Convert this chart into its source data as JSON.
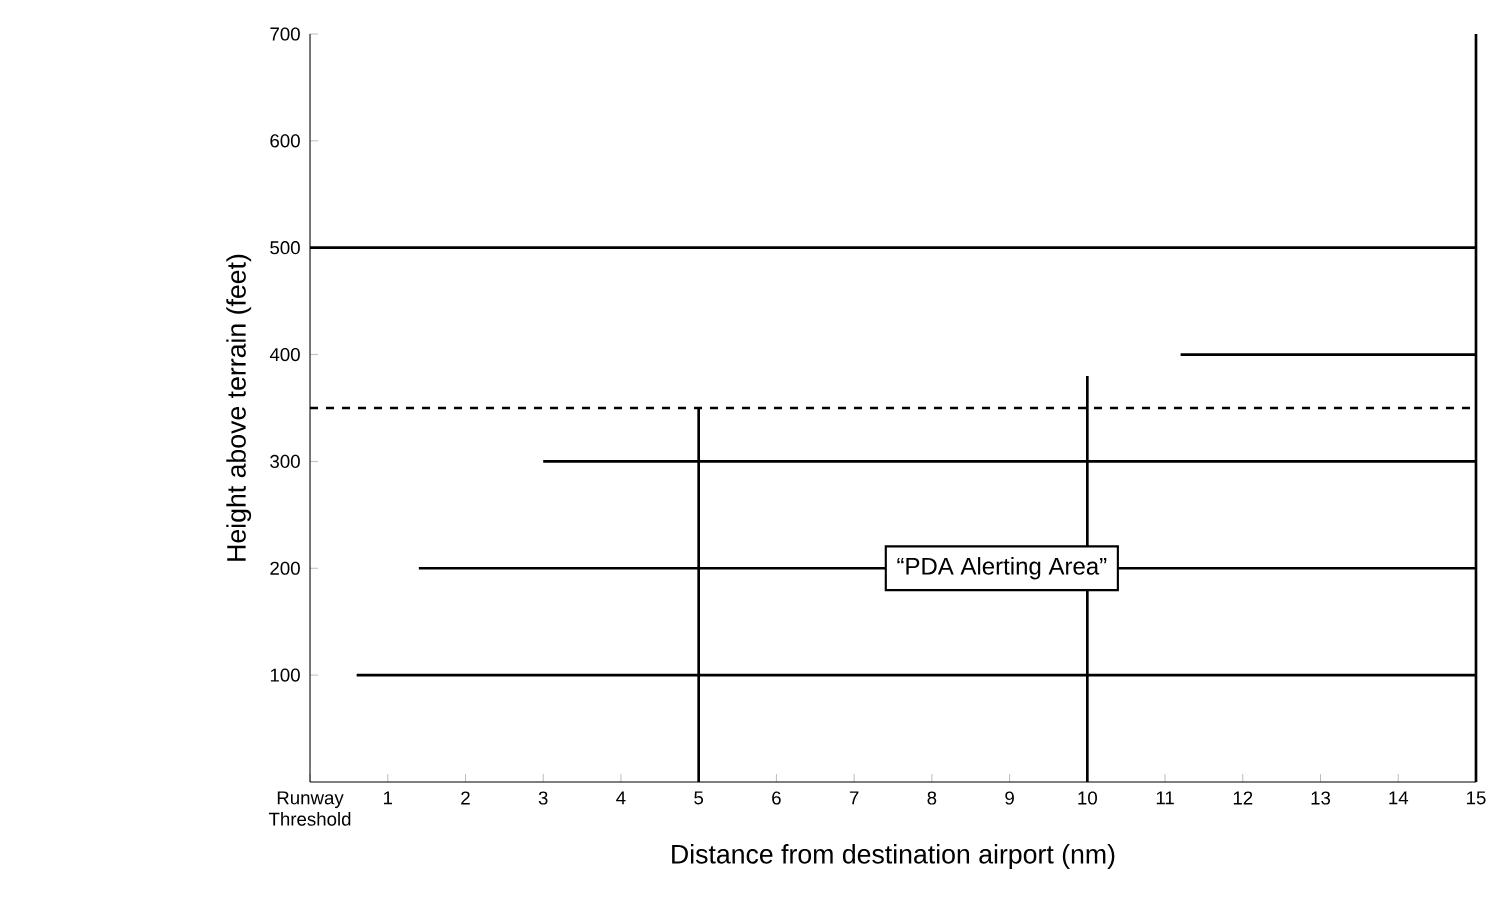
{
  "chart_data": {
    "type": "line",
    "xlabel": "Distance from destination airport (nm)",
    "ylabel": "Height above terrain (feet)",
    "xlim": [
      0,
      15
    ],
    "ylim": [
      0,
      700
    ],
    "xticks": [
      {
        "value": 0,
        "label": "Runway Threshold"
      },
      1,
      2,
      3,
      4,
      5,
      6,
      7,
      8,
      9,
      10,
      11,
      12,
      13,
      14,
      15
    ],
    "yticks": [
      100,
      200,
      300,
      400,
      500,
      600,
      700
    ],
    "series": [
      {
        "color": "#000000",
        "x": [
          0.6,
          15
        ],
        "values": [
          100,
          100
        ]
      },
      {
        "color": "#000000",
        "x": [
          1.4,
          15
        ],
        "values": [
          200,
          200
        ]
      },
      {
        "color": "#000000",
        "x": [
          3,
          15
        ],
        "values": [
          300,
          300
        ]
      },
      {
        "color": "#000000",
        "x": [
          11.2,
          15
        ],
        "values": [
          400,
          400
        ]
      },
      {
        "color": "#000000",
        "x": [
          0,
          15
        ],
        "values": [
          500,
          500
        ]
      },
      {
        "color": "#000000",
        "x": [
          5,
          5
        ],
        "values": [
          0,
          350
        ]
      },
      {
        "color": "#000000",
        "x": [
          10,
          10
        ],
        "values": [
          0,
          380
        ]
      },
      {
        "color": "#000000",
        "x": [
          15,
          15
        ],
        "values": [
          0,
          700
        ]
      }
    ],
    "ref_lines": [
      {
        "axis": "y",
        "value": 350,
        "line_style": "dashed",
        "color": "#000000"
      }
    ],
    "annotations": [
      {
        "text": "“PDA Alerting Area”",
        "x": 8.9,
        "y": 200
      }
    ],
    "line_style": "solid",
    "marker": "none"
  }
}
